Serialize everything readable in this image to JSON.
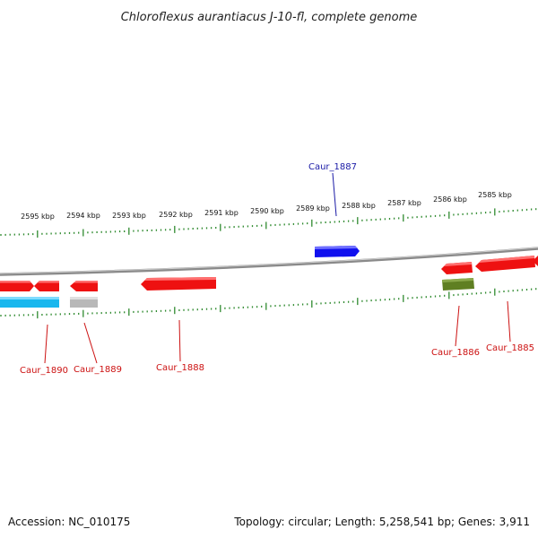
{
  "title": "Chloroflexus aurantiacus J-10-fl, complete genome",
  "footer": {
    "accession": "Accession: NC_010175",
    "summary": "Topology: circular; Length: 5,258,541 bp; Genes: 3,911"
  },
  "scale": {
    "unit": "kbp",
    "labels": [
      "2595 kbp",
      "2594 kbp",
      "2593 kbp",
      "2592 kbp",
      "2591 kbp",
      "2590 kbp",
      "2589 kbp",
      "2588 kbp",
      "2587 kbp",
      "2586 kbp",
      "2585 kbp"
    ]
  },
  "locus_tags": {
    "forward": [
      "Caur_1887"
    ],
    "reverse": [
      "Caur_1890",
      "Caur_1889",
      "Caur_1888",
      "Caur_1886",
      "Caur_1885"
    ]
  },
  "colors": {
    "forward_cds": "#1010ee",
    "reverse_cds": "#ee1111",
    "reverse_rna": "#19b7ee",
    "pseudo": "#b8b8b8",
    "misc_feature": "#5f7f22",
    "forward_label": "#1a1aa6",
    "reverse_label": "#cc1111",
    "tick": "#2f8a2f",
    "backbone": "#8a8a8a"
  }
}
